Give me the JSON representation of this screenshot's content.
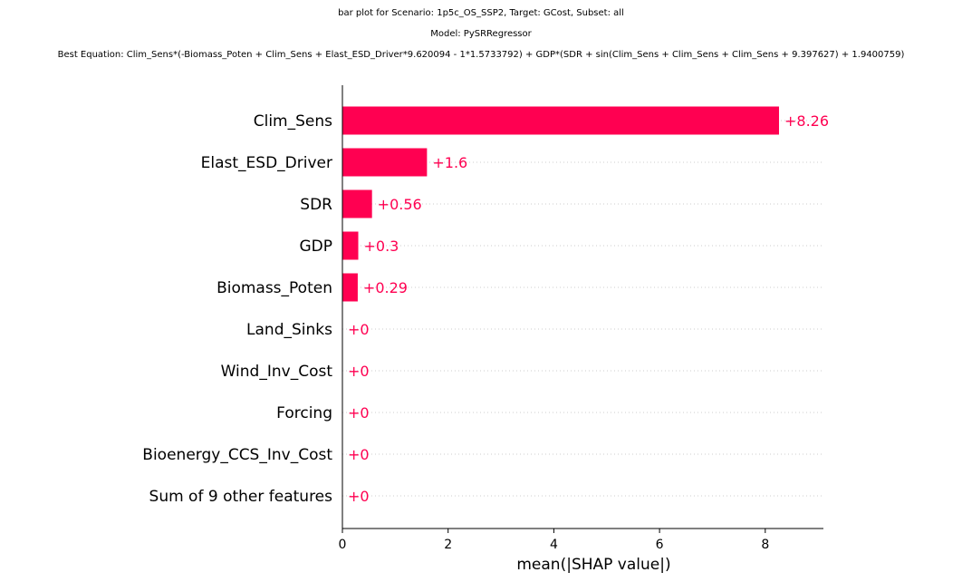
{
  "title_lines": [
    "bar plot for Scenario: 1p5c_OS_SSP2, Target: GCost, Subset: all",
    "Model: PySRRegressor",
    "Best Equation: Clim_Sens*(-Biomass_Poten + Clim_Sens + Elast_ESD_Driver*9.620094 - 1*1.5733792) + GDP*(SDR + sin(Clim_Sens + Clim_Sens + Clim_Sens + 9.397627) + 1.9400759)"
  ],
  "chart_data": {
    "type": "bar",
    "orientation": "horizontal",
    "categories": [
      "Clim_Sens",
      "Elast_ESD_Driver",
      "SDR",
      "GDP",
      "Biomass_Poten",
      "Land_Sinks",
      "Wind_Inv_Cost",
      "Forcing",
      "Bioenergy_CCS_Inv_Cost",
      "Sum of 9 other features"
    ],
    "values": [
      8.26,
      1.6,
      0.56,
      0.3,
      0.29,
      0,
      0,
      0,
      0,
      0
    ],
    "value_labels": [
      "+8.26",
      "+1.6",
      "+0.56",
      "+0.3",
      "+0.29",
      "+0",
      "+0",
      "+0",
      "+0",
      "+0"
    ],
    "xlabel": "mean(|SHAP value|)",
    "xlim": [
      0,
      9.1
    ],
    "xticks": [
      0,
      2,
      4,
      6,
      8
    ],
    "xtick_labels": [
      "0",
      "2",
      "4",
      "6",
      "8"
    ],
    "grid": "dotted horizontal row lines",
    "bar_color": "#ff0051",
    "label_color": "#ff0051"
  }
}
